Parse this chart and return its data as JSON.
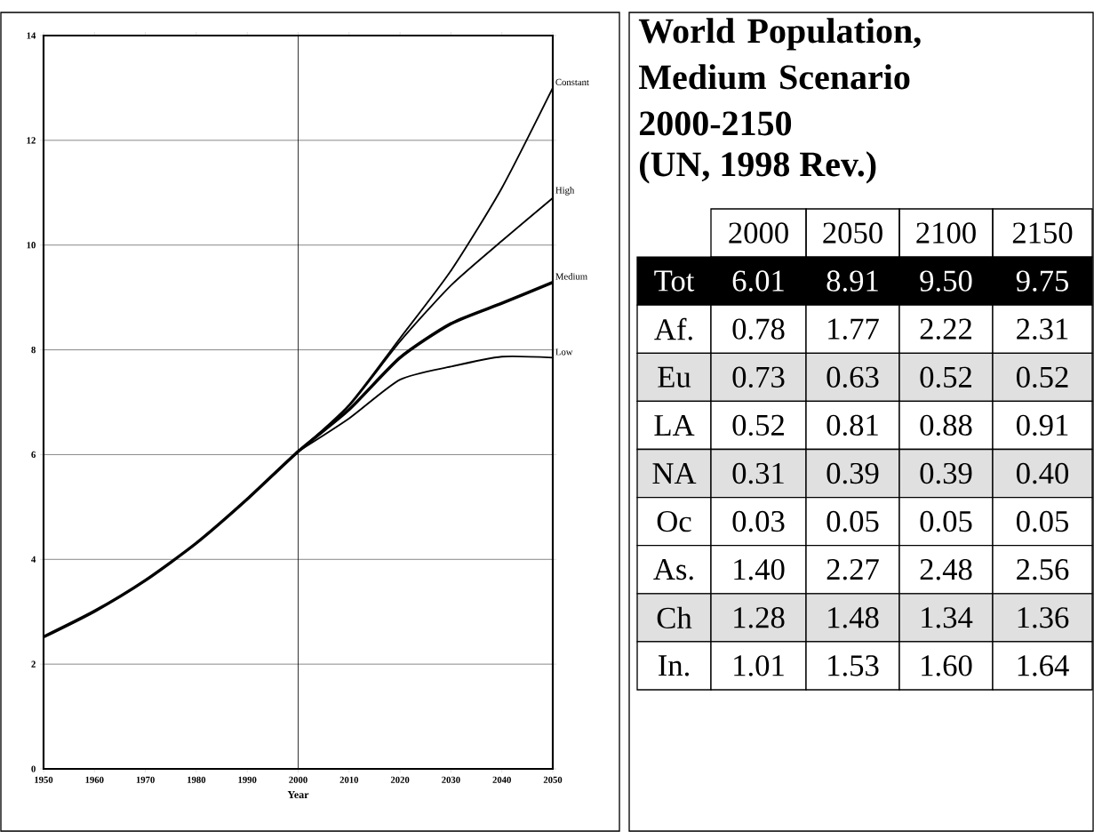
{
  "chart_data": [
    {
      "type": "line",
      "xlabel": "Year",
      "xlim": [
        1950,
        2050
      ],
      "ylim": [
        0,
        14
      ],
      "xticks": [
        1950,
        1960,
        1970,
        1980,
        1990,
        2000,
        2010,
        2020,
        2030,
        2040,
        2050
      ],
      "yticks": [
        0,
        2,
        4,
        6,
        8,
        10,
        12,
        14
      ],
      "grid": "y",
      "marker": "none",
      "line_style": "solid",
      "ref_lines": [
        {
          "axis": "x",
          "value": 2000
        }
      ],
      "series": [
        {
          "name": "Constant",
          "color": "#000000",
          "x": [
            2000,
            2010,
            2020,
            2030,
            2040,
            2050
          ],
          "values": [
            6.06,
            6.95,
            8.22,
            9.51,
            11.09,
            13.0
          ]
        },
        {
          "name": "High",
          "color": "#000000",
          "x": [
            2000,
            2010,
            2020,
            2030,
            2040,
            2050
          ],
          "values": [
            6.06,
            6.93,
            8.16,
            9.23,
            10.08,
            10.9
          ]
        },
        {
          "name": "Medium",
          "color": "#000000",
          "x": [
            1950,
            1960,
            1970,
            1980,
            1990,
            2000,
            2010,
            2020,
            2030,
            2040,
            2050
          ],
          "values": [
            2.52,
            3.01,
            3.6,
            4.31,
            5.15,
            6.06,
            6.86,
            7.85,
            8.5,
            8.89,
            9.29
          ]
        },
        {
          "name": "Low",
          "color": "#000000",
          "x": [
            2000,
            2010,
            2020,
            2030,
            2040,
            2050
          ],
          "values": [
            6.06,
            6.69,
            7.43,
            7.68,
            7.87,
            7.85
          ]
        }
      ]
    },
    {
      "type": "heatmap",
      "title": "World Population, Medium Scenario 2000-2150",
      "subtitle": "(UN, 1998 Rev.)",
      "categories": [
        "2000",
        "2050",
        "2100",
        "2150"
      ],
      "y_categories": [
        "Tot",
        "Af.",
        "Eu",
        "LA",
        "NA",
        "Oc",
        "As.",
        "Ch",
        "In."
      ],
      "cells": [
        [
          6.01,
          8.91,
          9.5,
          9.75
        ],
        [
          0.78,
          1.77,
          2.22,
          2.31
        ],
        [
          0.73,
          0.63,
          0.52,
          0.52
        ],
        [
          0.52,
          0.81,
          0.88,
          0.91
        ],
        [
          0.31,
          0.39,
          0.39,
          0.4
        ],
        [
          0.03,
          0.05,
          0.05,
          0.05
        ],
        [
          1.4,
          2.27,
          2.48,
          2.56
        ],
        [
          1.28,
          1.48,
          1.34,
          1.36
        ],
        [
          1.01,
          1.53,
          1.6,
          1.64
        ]
      ],
      "cell_labels": [
        [
          "6.01",
          "8.91",
          "9.50",
          "9.75"
        ],
        [
          "0.78",
          "1.77",
          "2.22",
          "2.31"
        ],
        [
          "0.73",
          "0.63",
          "0.52",
          "0.52"
        ],
        [
          "0.52",
          "0.81",
          "0.88",
          "0.91"
        ],
        [
          "0.31",
          "0.39",
          "0.39",
          "0.40"
        ],
        [
          "0.03",
          "0.05",
          "0.05",
          "0.05"
        ],
        [
          "1.40",
          "2.27",
          "2.48",
          "2.56"
        ],
        [
          "1.28",
          "1.48",
          "1.34",
          "1.36"
        ],
        [
          "1.01",
          "1.53",
          "1.60",
          "1.64"
        ]
      ]
    }
  ]
}
